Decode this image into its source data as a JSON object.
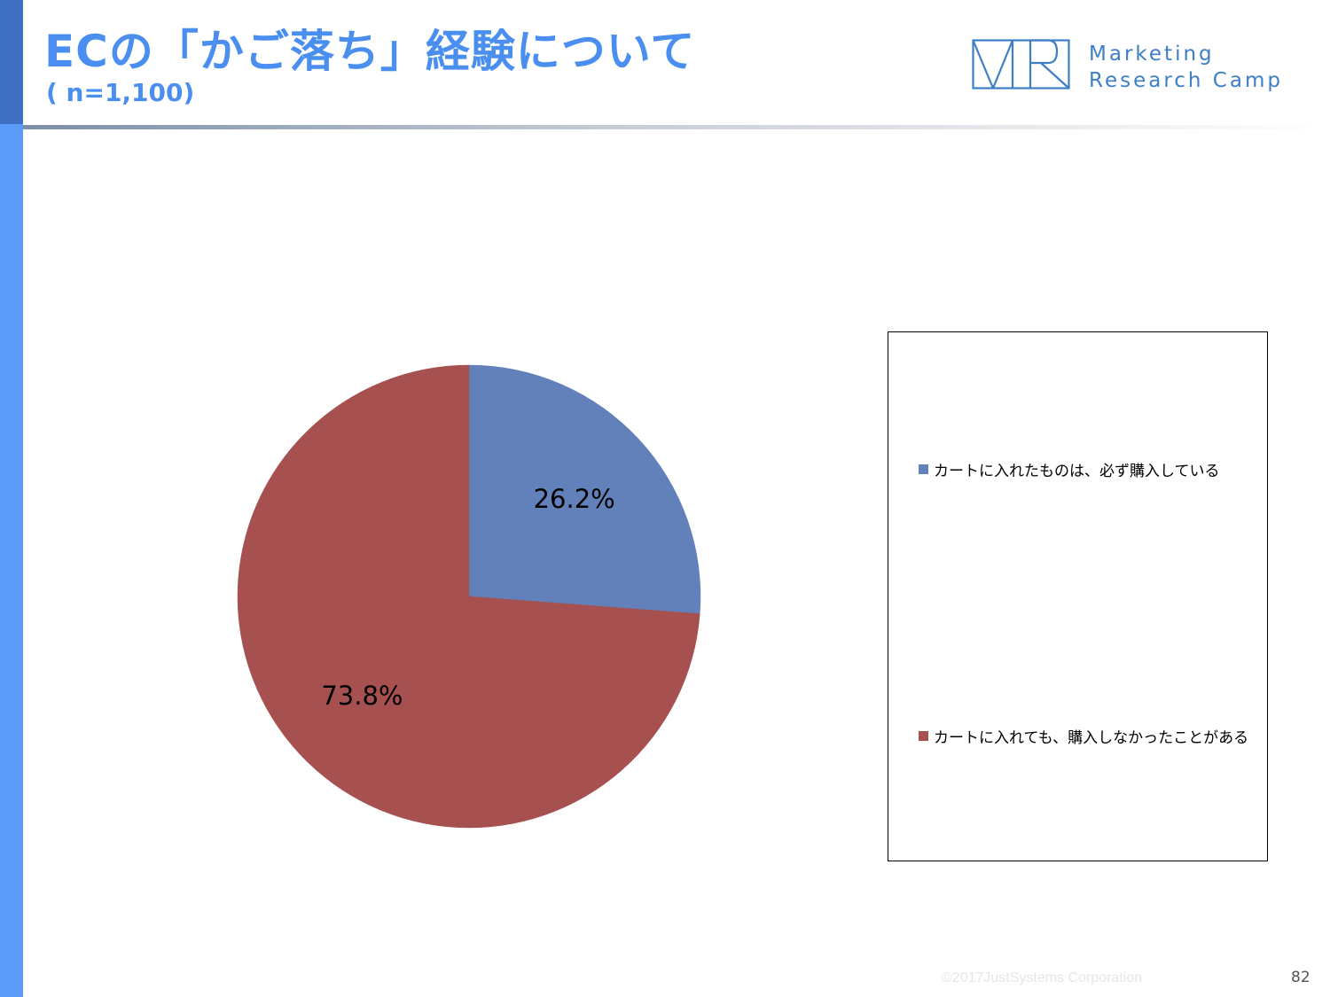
{
  "slide": {
    "title": "ECの「かご落ち」経験について",
    "subtitle": "( n=1,100)",
    "footer": "©2017JustSystems Corporation",
    "page_number": "82"
  },
  "logo": {
    "line1": "Marketing",
    "line2": "Research Camp",
    "color": "#3d7fc6"
  },
  "colors": {
    "title": "#4a8ff0",
    "sidebar": "#5b9bf7",
    "sidebar_top": "#3f6fc1"
  },
  "chart_data": {
    "type": "pie",
    "categories": [
      "カートに入れたものは、必ず購入している",
      "カートに入れても、購入しなかったことがある"
    ],
    "values": [
      26.2,
      73.8
    ],
    "labels": [
      "26.2%",
      "73.8%"
    ],
    "colors": [
      "#6280b9",
      "#a65150"
    ],
    "start_angle": "12 o'clock",
    "direction": "clockwise",
    "legend_position": "right"
  }
}
